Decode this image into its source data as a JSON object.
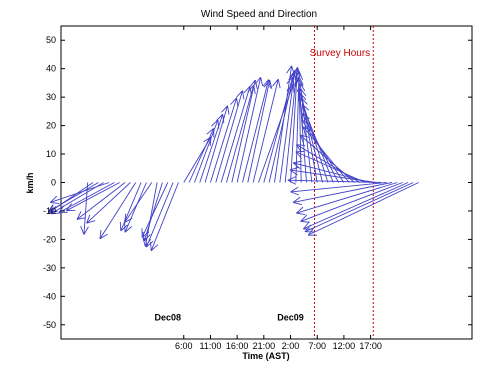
{
  "chart_data": {
    "type": "line",
    "title": "Wind Speed and Direction",
    "xlabel": "Time (AST)",
    "ylabel": "km/h",
    "xlim": [
      -17,
      60
    ],
    "ylim": [
      -55,
      55
    ],
    "grid": false,
    "xticks": [
      {
        "x": 6,
        "label": "6:00"
      },
      {
        "x": 11,
        "label": "11:00"
      },
      {
        "x": 16,
        "label": "16:00"
      },
      {
        "x": 21,
        "label": "21:00"
      },
      {
        "x": 26,
        "label": "2:00"
      },
      {
        "x": 31,
        "label": "7:00"
      },
      {
        "x": 36,
        "label": "12:00"
      },
      {
        "x": 41,
        "label": "17:00"
      }
    ],
    "yticks": [
      50,
      40,
      30,
      20,
      10,
      0,
      -10,
      -20,
      -30,
      -40,
      -50
    ],
    "day_labels": [
      {
        "x": 3,
        "label": "Dec08"
      },
      {
        "x": 26,
        "label": "Dec09"
      }
    ],
    "survey_hours": {
      "label": "Survey Hours",
      "start": 30.5,
      "end": 41.5,
      "color": "#cc0000"
    },
    "series": [
      {
        "color": "#4040c8",
        "vectors": [
          [
            -12,
            -0.7,
            -18.3
          ],
          [
            -11,
            -8.3,
            -10.6
          ],
          [
            -10,
            -9.4,
            -10.3
          ],
          [
            -9,
            -9.9,
            -11.0
          ],
          [
            -8,
            -11.0,
            -7.0
          ],
          [
            -7,
            -10.4,
            -10.6
          ],
          [
            -6,
            -10.0,
            -9.9
          ],
          [
            -5,
            -9.0,
            -13.0
          ],
          [
            -4,
            -8.2,
            -14.3
          ],
          [
            -3,
            -6.7,
            -19.8
          ],
          [
            -2,
            -3.8,
            -17.0
          ],
          [
            -1,
            -4.0,
            -17.5
          ],
          [
            0,
            -5.1,
            -14.1
          ],
          [
            1,
            -2.2,
            -22.5
          ],
          [
            2,
            -3.4,
            -20.5
          ],
          [
            3,
            -4.8,
            -19.3
          ],
          [
            4,
            -5.0,
            -22.7
          ],
          [
            5,
            -5.1,
            -24.0
          ],
          [
            6,
            5.1,
            16.0
          ],
          [
            7,
            4.6,
            19.0
          ],
          [
            8,
            4.4,
            22.0
          ],
          [
            9,
            4.3,
            24.0
          ],
          [
            10,
            4.2,
            27.0
          ],
          [
            11,
            4.9,
            29.7
          ],
          [
            12,
            5.0,
            32.3
          ],
          [
            13,
            5.4,
            33.8
          ],
          [
            14,
            5.1,
            34.2
          ],
          [
            15,
            4.4,
            36.0
          ],
          [
            16,
            4.4,
            37.0
          ],
          [
            17,
            4.9,
            36.2
          ],
          [
            18,
            4.1,
            36.0
          ],
          [
            19,
            4.7,
            36.3
          ],
          [
            20,
            6.5,
            34.5
          ],
          [
            21,
            5.4,
            37.1
          ],
          [
            22,
            4.7,
            38.5
          ],
          [
            23,
            3.2,
            41.0
          ],
          [
            24,
            2.8,
            39.4
          ],
          [
            25,
            2.2,
            40.1
          ],
          [
            26,
            1.3,
            40.5
          ],
          [
            27,
            0.6,
            39.0
          ],
          [
            28,
            -0.4,
            37.2
          ],
          [
            29,
            -1.5,
            36.5
          ],
          [
            30,
            -2.2,
            34.8
          ],
          [
            31,
            -3.1,
            33.0
          ],
          [
            32,
            -4.2,
            31.5
          ],
          [
            33,
            -5.0,
            29.8
          ],
          [
            34,
            -5.8,
            27.5
          ],
          [
            35,
            -6.8,
            24.3
          ],
          [
            36,
            -7.9,
            22.0
          ],
          [
            37,
            -8.6,
            19.5
          ],
          [
            38,
            -10.2,
            16.7
          ],
          [
            39,
            -11.9,
            13.3
          ],
          [
            40,
            -13.0,
            10.8
          ],
          [
            41,
            -14.5,
            6.9
          ],
          [
            42,
            -16.1,
            4.4
          ],
          [
            43,
            -17.5,
            0.8
          ],
          [
            44,
            -18.0,
            -3.3
          ],
          [
            45,
            -18.5,
            -7.0
          ],
          [
            46,
            -18.9,
            -10.8
          ],
          [
            47,
            -19.1,
            -13.7
          ],
          [
            48,
            -19.6,
            -16.3
          ],
          [
            49,
            -20.3,
            -17.3
          ],
          [
            50,
            -20.7,
            -18.5
          ]
        ]
      }
    ]
  }
}
